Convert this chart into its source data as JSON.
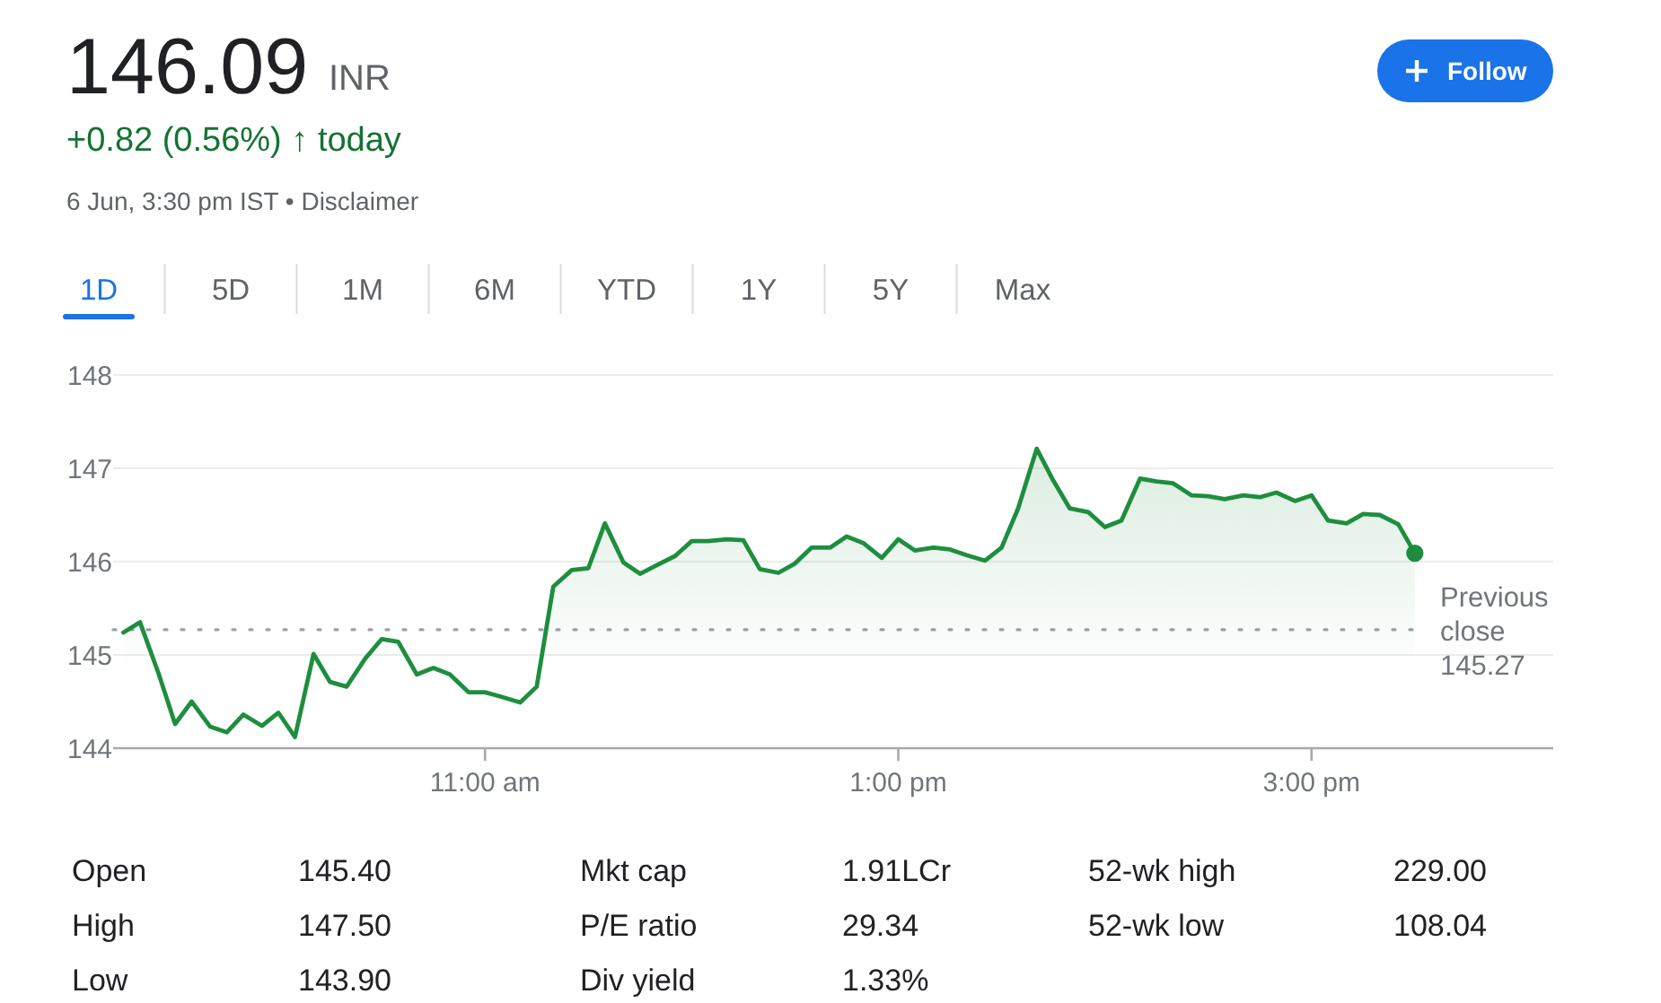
{
  "chart_data": {
    "type": "area",
    "title": "146.09 INR",
    "subtitle": "+0.82 (0.56%) ↑ today",
    "x": [
      9.25,
      9.33,
      9.42,
      9.5,
      9.58,
      9.67,
      9.75,
      9.83,
      9.92,
      10,
      10.08,
      10.17,
      10.25,
      10.33,
      10.42,
      10.5,
      10.58,
      10.67,
      10.75,
      10.83,
      10.92,
      11,
      11.08,
      11.17,
      11.25,
      11.33,
      11.42,
      11.5,
      11.58,
      11.67,
      11.75,
      11.83,
      11.92,
      12,
      12.08,
      12.17,
      12.25,
      12.33,
      12.42,
      12.5,
      12.58,
      12.67,
      12.75,
      12.83,
      12.92,
      13,
      13.08,
      13.17,
      13.25,
      13.33,
      13.42,
      13.5,
      13.58,
      13.67,
      13.75,
      13.83,
      13.92,
      14,
      14.08,
      14.17,
      14.25,
      14.33,
      14.42,
      14.5,
      14.58,
      14.67,
      14.75,
      14.83,
      14.92,
      15,
      15.08,
      15.17,
      15.25,
      15.33,
      15.42,
      15.5
    ],
    "series": [
      {
        "color": "#1e8e3e",
        "values": [
          145.24,
          145.35,
          144.8,
          144.26,
          144.5,
          144.23,
          144.17,
          144.36,
          144.24,
          144.38,
          144.12,
          145.01,
          144.71,
          144.66,
          144.96,
          145.17,
          145.14,
          144.79,
          144.86,
          144.79,
          144.6,
          144.6,
          144.55,
          144.49,
          144.66,
          145.73,
          145.91,
          145.93,
          146.41,
          145.99,
          145.87,
          145.96,
          146.06,
          146.22,
          146.22,
          146.24,
          146.23,
          145.92,
          145.88,
          145.98,
          146.15,
          146.15,
          146.27,
          146.2,
          146.04,
          146.24,
          146.12,
          146.15,
          146.13,
          146.07,
          146.01,
          146.15,
          146.57,
          147.21,
          146.87,
          146.57,
          146.53,
          146.37,
          146.44,
          146.89,
          146.86,
          146.84,
          146.71,
          146.7,
          146.67,
          146.71,
          146.69,
          146.74,
          146.65,
          146.71,
          146.44,
          146.41,
          146.51,
          146.5,
          146.4,
          146.09
        ]
      },
      {
        "type": "scatter",
        "marker": "circle",
        "color": "#1e8e3e",
        "x": [
          15.5
        ],
        "values": [
          146.09
        ]
      }
    ],
    "xlim": [
      9.2,
      16.17
    ],
    "xticks": [
      {
        "value": 11,
        "label": "11:00 am"
      },
      {
        "value": 13,
        "label": "1:00 pm"
      },
      {
        "value": 15,
        "label": "3:00 pm"
      }
    ],
    "ylim": [
      144,
      148
    ],
    "yticks": [
      144,
      145,
      146,
      147,
      148
    ],
    "grid": "y",
    "ref_lines": [
      {
        "axis": "y",
        "value": 145.27,
        "label": "Previous close 145.27",
        "line_style": "dotted",
        "color": "#9aa0a6"
      }
    ],
    "annotations": [
      "6 Jun, 3:30 pm IST • Disclaimer",
      "Follow",
      "1D",
      "5D",
      "1M",
      "6M",
      "YTD",
      "1Y",
      "5Y",
      "Max",
      "Open",
      "145.40",
      "Mkt cap",
      "1.91LCr",
      "52-wk high",
      "229.00",
      "High",
      "147.50",
      "P/E ratio",
      "29.34",
      "52-wk low",
      "108.04",
      "Low",
      "143.90",
      "Div yield",
      "1.33%"
    ]
  }
}
